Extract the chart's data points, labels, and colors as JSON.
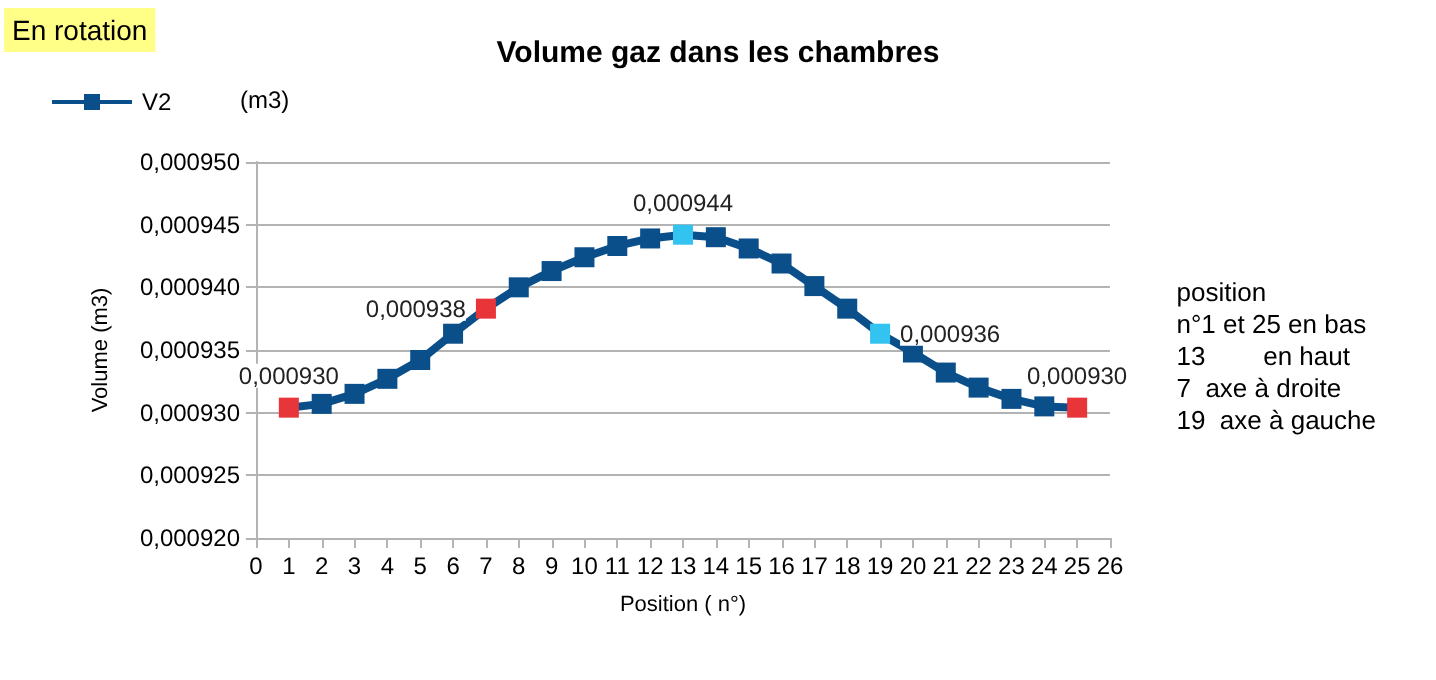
{
  "chart_data": {
    "type": "line",
    "title": "Volume gaz dans les chambres",
    "xlabel": "Position ( n°)",
    "ylabel": "Volume (m3)",
    "x": [
      1,
      2,
      3,
      4,
      5,
      6,
      7,
      8,
      9,
      10,
      11,
      12,
      13,
      14,
      15,
      16,
      17,
      18,
      19,
      20,
      21,
      22,
      23,
      24,
      25
    ],
    "series": [
      {
        "name": "V2",
        "color": "#0b4f8a",
        "values": [
          0.0009304,
          0.0009307,
          0.0009315,
          0.0009327,
          0.0009342,
          0.0009363,
          0.0009383,
          0.00094,
          0.0009413,
          0.0009424,
          0.0009433,
          0.0009439,
          0.0009442,
          0.000944,
          0.0009431,
          0.0009419,
          0.0009401,
          0.0009383,
          0.0009363,
          0.0009348,
          0.0009332,
          0.000932,
          0.0009311,
          0.0009305,
          0.0009304
        ],
        "colors": [
          "#e8353a",
          "#0b4f8a",
          "#0b4f8a",
          "#0b4f8a",
          "#0b4f8a",
          "#0b4f8a",
          "#e8353a",
          "#0b4f8a",
          "#0b4f8a",
          "#0b4f8a",
          "#0b4f8a",
          "#0b4f8a",
          "#33c3f0",
          "#0b4f8a",
          "#0b4f8a",
          "#0b4f8a",
          "#0b4f8a",
          "#0b4f8a",
          "#33c3f0",
          "#0b4f8a",
          "#0b4f8a",
          "#0b4f8a",
          "#0b4f8a",
          "#0b4f8a",
          "#e8353a"
        ],
        "value_labels": [
          "0,000930",
          null,
          null,
          null,
          null,
          null,
          "0,000938",
          null,
          null,
          null,
          null,
          null,
          "0,000944",
          null,
          null,
          null,
          null,
          null,
          "0,000936",
          null,
          null,
          null,
          null,
          null,
          "0,000930"
        ]
      }
    ],
    "xlim": [
      0,
      26
    ],
    "xticks": [
      0,
      1,
      2,
      3,
      4,
      5,
      6,
      7,
      8,
      9,
      10,
      11,
      12,
      13,
      14,
      15,
      16,
      17,
      18,
      19,
      20,
      21,
      22,
      23,
      24,
      25,
      26
    ],
    "ylim": [
      0.00092,
      0.00095
    ],
    "yticks": [
      {
        "value": 0.00092,
        "label": "0,000920"
      },
      {
        "value": 0.000925,
        "label": "0,000925"
      },
      {
        "value": 0.00093,
        "label": "0,000930"
      },
      {
        "value": 0.000935,
        "label": "0,000935"
      },
      {
        "value": 0.00094,
        "label": "0,000940"
      },
      {
        "value": 0.000945,
        "label": "0,000945"
      },
      {
        "value": 0.00095,
        "label": "0,000950"
      }
    ],
    "grid": "y",
    "legend": "top left",
    "marker": "square",
    "line_style": "solid",
    "annotations": [
      "En rotation",
      "(m3)",
      "position\nn°1 et 25 en bas\n13        en haut\n7  axe à droite\n19  axe à gauche"
    ]
  }
}
